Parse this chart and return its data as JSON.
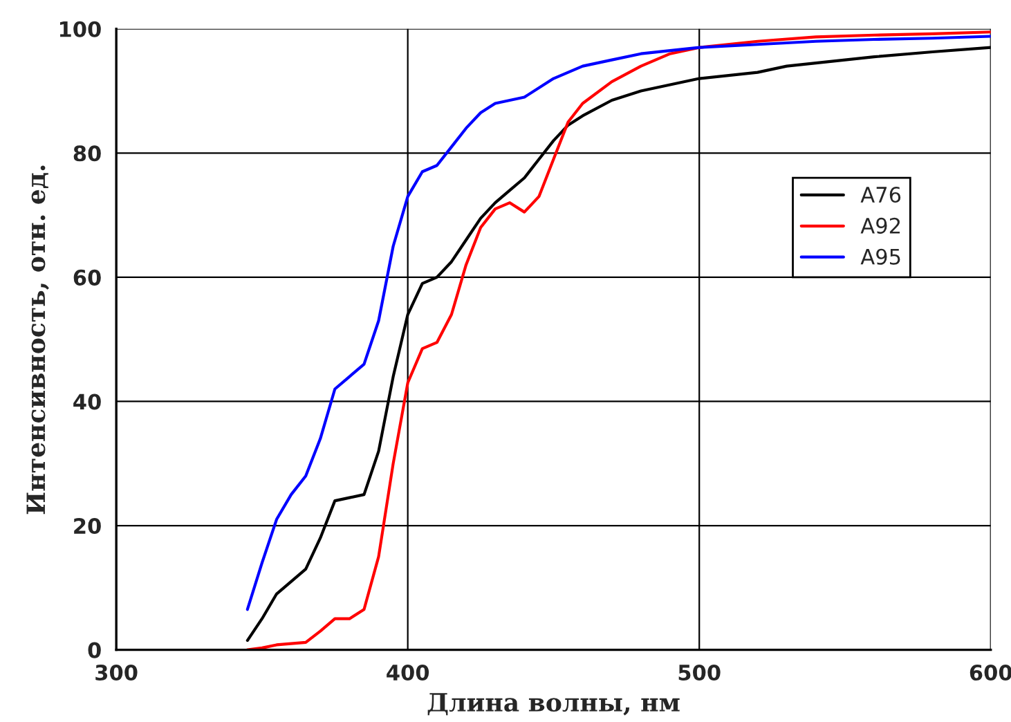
{
  "chart_data": {
    "type": "line",
    "xlabel": "Длина волны, нм",
    "ylabel": "Интенсивность, отн. ед.",
    "xlim": [
      300,
      600
    ],
    "xticks": [
      300,
      400,
      500,
      600
    ],
    "ylim": [
      0,
      100
    ],
    "yticks": [
      0,
      20,
      40,
      60,
      80,
      100
    ],
    "grid": true,
    "legend": "right",
    "marker": "none",
    "line_style": "solid",
    "series": [
      {
        "name": "A76",
        "color": "#000000",
        "x": [
          345,
          350,
          355,
          360,
          365,
          370,
          375,
          380,
          385,
          390,
          395,
          400,
          405,
          410,
          415,
          420,
          425,
          430,
          435,
          440,
          445,
          450,
          455,
          460,
          470,
          480,
          490,
          500,
          520,
          530,
          540,
          560,
          580,
          600
        ],
        "values": [
          1.5,
          5,
          9,
          11,
          13,
          18,
          24,
          24.5,
          25,
          32,
          44,
          54,
          59,
          60,
          62.5,
          66,
          69.5,
          72,
          74,
          76,
          79,
          82,
          84.5,
          86,
          88.5,
          90,
          91,
          92,
          93,
          94,
          94.5,
          95.5,
          96.3,
          97
        ]
      },
      {
        "name": "A92",
        "color": "#ff0000",
        "x": [
          345,
          350,
          355,
          360,
          365,
          370,
          375,
          380,
          385,
          390,
          395,
          400,
          405,
          410,
          415,
          420,
          425,
          430,
          435,
          440,
          445,
          450,
          455,
          460,
          470,
          480,
          490,
          500,
          520,
          540,
          560,
          580,
          600
        ],
        "values": [
          0,
          0.3,
          0.8,
          1,
          1.2,
          3,
          5,
          5,
          6.5,
          15,
          30,
          43,
          48.5,
          49.5,
          54,
          62,
          68,
          71,
          72,
          70.5,
          73,
          79,
          85,
          88,
          91.5,
          94,
          96,
          97,
          98,
          98.7,
          99,
          99.2,
          99.5
        ]
      },
      {
        "name": "A95",
        "color": "#0000ff",
        "x": [
          345,
          350,
          355,
          360,
          365,
          370,
          375,
          380,
          385,
          390,
          395,
          400,
          405,
          410,
          415,
          420,
          425,
          430,
          435,
          440,
          450,
          460,
          470,
          480,
          490,
          500,
          520,
          540,
          560,
          580,
          600
        ],
        "values": [
          6.5,
          14,
          21,
          25,
          28,
          34,
          42,
          44,
          46,
          53,
          65,
          73,
          77,
          78,
          81,
          84,
          86.5,
          88,
          88.5,
          89,
          92,
          94,
          95,
          96,
          96.5,
          97,
          97.5,
          98,
          98.3,
          98.5,
          98.8
        ]
      }
    ]
  }
}
